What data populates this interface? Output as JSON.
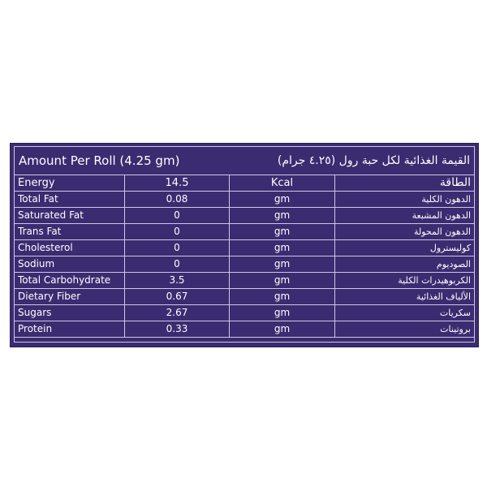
{
  "header": {
    "title_en": "Amount Per Roll (4.25 gm)",
    "title_ar": "القيمة الغذائية لكل حبة رول (٤.٢٥ جرام)"
  },
  "rows": [
    {
      "name": "Energy",
      "value": "14.5",
      "unit": "Kcal",
      "name_ar": "الطاقة"
    },
    {
      "name": "Total Fat",
      "value": "0.08",
      "unit": "gm",
      "name_ar": "الدهون الكلية"
    },
    {
      "name": "Saturated Fat",
      "value": "0",
      "unit": "gm",
      "name_ar": "الدهون المشبعة"
    },
    {
      "name": "Trans Fat",
      "value": "0",
      "unit": "gm",
      "name_ar": "الدهون المحولة"
    },
    {
      "name": "Cholesterol",
      "value": "0",
      "unit": "gm",
      "name_ar": "كوليسترول"
    },
    {
      "name": "Sodium",
      "value": "0",
      "unit": "gm",
      "name_ar": "الصوديوم"
    },
    {
      "name": "Total Carbohydrate",
      "value": "3.5",
      "unit": "gm",
      "name_ar": "الكربوهيدرات الكلية"
    },
    {
      "name": "Dietary Fiber",
      "value": "0.67",
      "unit": "gm",
      "name_ar": "الألياف الغذائية"
    },
    {
      "name": "Sugars",
      "value": "2.67",
      "unit": "gm",
      "name_ar": "سكريات"
    },
    {
      "name": "Protein",
      "value": "0.33",
      "unit": "gm",
      "name_ar": "بروتينات"
    }
  ],
  "colors": {
    "panel": "#3b2b70",
    "text": "#ffffff"
  }
}
